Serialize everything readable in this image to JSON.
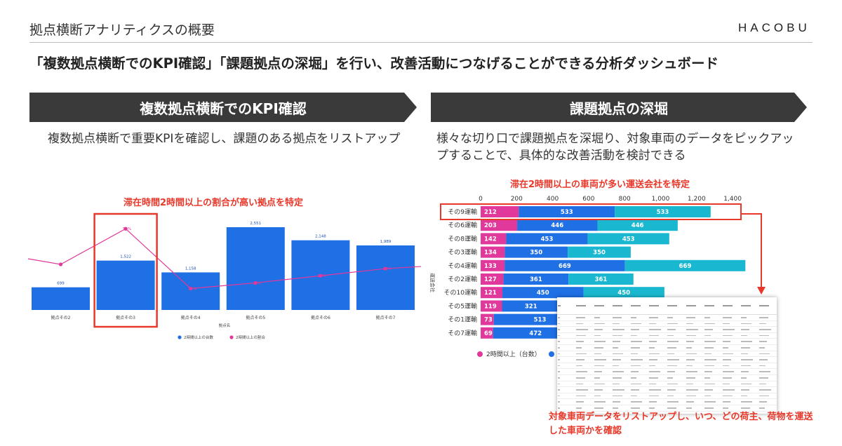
{
  "header": {
    "title": "拠点横断アナリティクスの概要",
    "logo_text": "HACOBU",
    "headline": "「複数拠点横断でのKPI確認」「課題拠点の深堀」を行い、改善活動につなげることができる分析ダッシュボード"
  },
  "left": {
    "banner": "複数拠点横断でのKPI確認",
    "description": "複数拠点横断で重要KPIを確認し、課題のある拠点をリストアップ",
    "chart_title": "滞在時間2時間以上の割合が高い拠点を特定"
  },
  "right": {
    "banner": "課題拠点の深堀",
    "description": "様々な切り口で課題拠点を深堀り、対象車両のデータをピックアップすることで、具体的な改善活動を検討できる",
    "chart_title": "滞在2時間以上の車両が多い運送会社を特定",
    "bottom_caption": "対象車両データをリストアップし、いつ、どの荷主、荷物を運送した車両かを確認"
  },
  "colors": {
    "banner_bg": "#3a3a3a",
    "accent_red": "#e8382a",
    "bar_blue": "#1f6fe5",
    "line_pink": "#e0399b",
    "teal": "#1ab8d0"
  },
  "chart_data": [
    {
      "type": "bar",
      "xlabel": "拠点名",
      "categories": [
        "拠点その2",
        "拠点その3",
        "拠点その4",
        "拠点その5",
        "拠点その6",
        "拠点その7"
      ],
      "series": [
        {
          "name": "2時間以上の台数",
          "values": [
            699,
            1522,
            1158,
            2551,
            2148,
            1989
          ],
          "labels": [
            "699",
            "1,522",
            "1,158",
            "2,551",
            "2,148",
            "1,989"
          ]
        },
        {
          "name": "2時間以上の割合",
          "values": [
            34,
            59,
            17,
            21,
            26,
            31
          ],
          "labels": [
            "",
            "59%",
            "17%",
            "21%",
            "26%",
            "31%"
          ]
        }
      ],
      "highlight_index": 1
    },
    {
      "type": "bar",
      "orientation": "horizontal",
      "ylabel": "運送会社",
      "xlim": [
        0,
        1400
      ],
      "xticks": [
        "0",
        "200",
        "400",
        "600",
        "800",
        "1,000",
        "1,200",
        "1,400"
      ],
      "categories": [
        "その9運輸",
        "その6運輸",
        "その8運輸",
        "その3運輸",
        "その4運輸",
        "その2運輸",
        "その10運輸",
        "その5運輸",
        "その1運輸",
        "その7運輸"
      ],
      "series": [
        {
          "name": "2時間以上（台数）",
          "values": [
            212,
            203,
            142,
            134,
            133,
            127,
            121,
            119,
            73,
            69
          ]
        },
        {
          "name": "",
          "values": [
            533,
            446,
            453,
            350,
            669,
            361,
            450,
            321,
            513,
            472
          ]
        },
        {
          "name": "",
          "values": [
            533,
            446,
            453,
            350,
            669,
            361,
            450,
            null,
            null,
            null
          ]
        }
      ],
      "highlight_index": 0
    }
  ]
}
